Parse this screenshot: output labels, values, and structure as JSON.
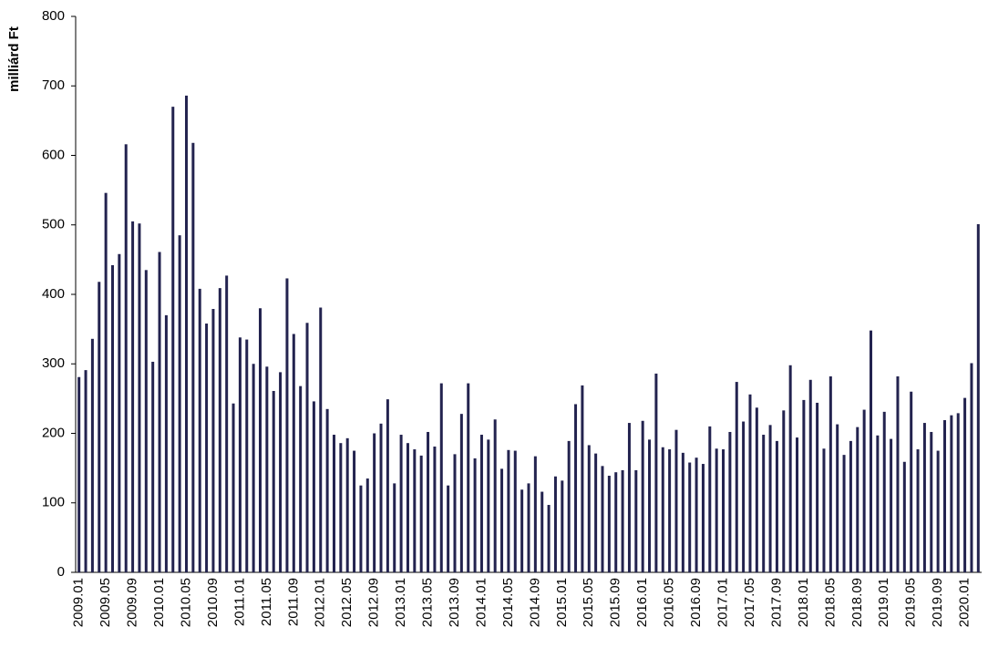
{
  "chart_data": {
    "type": "bar",
    "y_label": "milliárd Ft",
    "color": "#23234f",
    "ylim": [
      0,
      800
    ],
    "yticks": [
      0,
      100,
      200,
      300,
      400,
      500,
      600,
      700,
      800
    ],
    "grid": false,
    "categories": [
      "2009.01",
      null,
      null,
      null,
      "2009.05",
      null,
      null,
      null,
      "2009.09",
      null,
      null,
      null,
      "2010.01",
      null,
      null,
      null,
      "2010.05",
      null,
      null,
      null,
      "2010.09",
      null,
      null,
      null,
      "2011.01",
      null,
      null,
      null,
      "2011.05",
      null,
      null,
      null,
      "2011.09",
      null,
      null,
      null,
      "2012.01",
      null,
      null,
      null,
      "2012.05",
      null,
      null,
      null,
      "2012.09",
      null,
      null,
      null,
      "2013.01",
      null,
      null,
      null,
      "2013.05",
      null,
      null,
      null,
      "2013.09",
      null,
      null,
      null,
      "2014.01",
      null,
      null,
      null,
      "2014.05",
      null,
      null,
      null,
      "2014.09",
      null,
      null,
      null,
      "2015.01",
      null,
      null,
      null,
      "2015.05",
      null,
      null,
      null,
      "2015.09",
      null,
      null,
      null,
      "2016.01",
      null,
      null,
      null,
      "2016.05",
      null,
      null,
      null,
      "2016.09",
      null,
      null,
      null,
      "2017.01",
      null,
      null,
      null,
      "2017.05",
      null,
      null,
      null,
      "2017.09",
      null,
      null,
      null,
      "2018.01",
      null,
      null,
      null,
      "2018.05",
      null,
      null,
      null,
      "2018.09",
      null,
      null,
      null,
      "2019.01",
      null,
      null,
      null,
      "2019.05",
      null,
      null,
      null,
      "2019.09",
      null,
      null,
      null,
      "2020.01",
      null,
      null
    ],
    "values": [
      281,
      291,
      336,
      418,
      546,
      442,
      458,
      616,
      505,
      502,
      435,
      303,
      461,
      370,
      670,
      485,
      686,
      618,
      408,
      358,
      379,
      409,
      427,
      243,
      338,
      335,
      300,
      380,
      296,
      261,
      288,
      423,
      343,
      268,
      359,
      246,
      381,
      235,
      198,
      186,
      193,
      175,
      125,
      135,
      200,
      214,
      249,
      128,
      198,
      186,
      177,
      168,
      202,
      181,
      272,
      125,
      170,
      228,
      272,
      164,
      198,
      191,
      220,
      149,
      176,
      175,
      119,
      128,
      167,
      116,
      97,
      138,
      132,
      189,
      242,
      269,
      183,
      171,
      153,
      139,
      144,
      147,
      215,
      147,
      218,
      191,
      286,
      180,
      177,
      205,
      172,
      158,
      165,
      156,
      210,
      178,
      177,
      202,
      274,
      217,
      256,
      237,
      198,
      212,
      189,
      233,
      298,
      194,
      248,
      277,
      244,
      178,
      282,
      213,
      169,
      189,
      209,
      234,
      348,
      197,
      231,
      192,
      282,
      159,
      260,
      177,
      215,
      202,
      175,
      219,
      226,
      229,
      251,
      301,
      501
    ]
  }
}
